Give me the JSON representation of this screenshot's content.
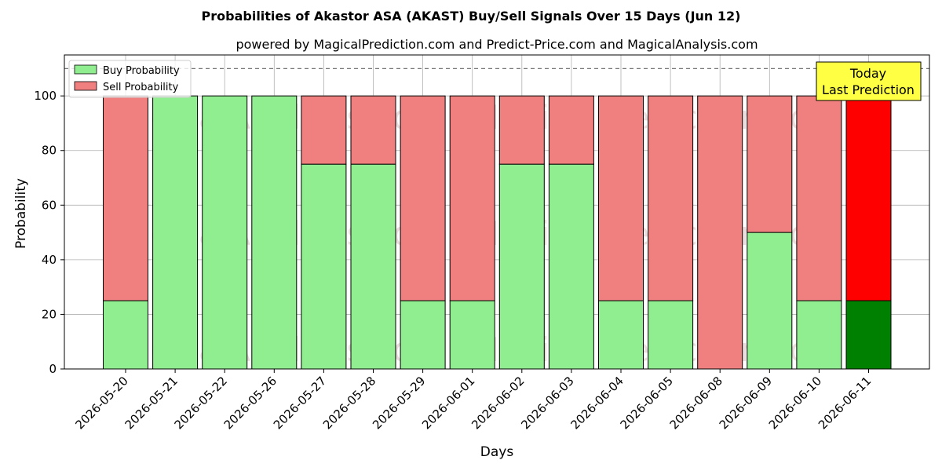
{
  "chart_data": {
    "type": "bar",
    "stacked": true,
    "title": "Probabilities of Akastor ASA (AKAST) Buy/Sell Signals Over 15 Days (Jun 12)",
    "subtitle": "powered by MagicalPrediction.com and Predict-Price.com and MagicalAnalysis.com",
    "xlabel": "Days",
    "ylabel": "Probability",
    "ylim": [
      0,
      115
    ],
    "yticks": [
      0,
      20,
      40,
      60,
      80,
      100
    ],
    "grid": true,
    "reference_line": 110,
    "legend_position": "top-left",
    "categories": [
      "2026-05-20",
      "2026-05-21",
      "2026-05-22",
      "2026-05-26",
      "2026-05-27",
      "2026-05-28",
      "2026-05-29",
      "2026-06-01",
      "2026-06-02",
      "2026-06-03",
      "2026-06-04",
      "2026-06-05",
      "2026-06-08",
      "2026-06-09",
      "2026-06-10",
      "2026-06-11"
    ],
    "series": [
      {
        "name": "Buy Probability",
        "color": "#90ee90",
        "highlight_color": "#008000",
        "values": [
          25,
          100,
          100,
          100,
          75,
          75,
          25,
          25,
          75,
          75,
          25,
          25,
          0,
          50,
          25,
          25
        ]
      },
      {
        "name": "Sell Probability",
        "color": "#f08080",
        "highlight_color": "#ff0000",
        "values": [
          75,
          0,
          0,
          0,
          25,
          25,
          75,
          75,
          25,
          25,
          75,
          75,
          100,
          50,
          75,
          75
        ]
      }
    ],
    "highlight_index": 15,
    "annotation": {
      "lines": [
        "Today",
        "Last Prediction"
      ],
      "color": "#ffff44"
    },
    "watermarks": [
      "MagicalAnalysis.com",
      "MagicalPrediction.com"
    ]
  }
}
